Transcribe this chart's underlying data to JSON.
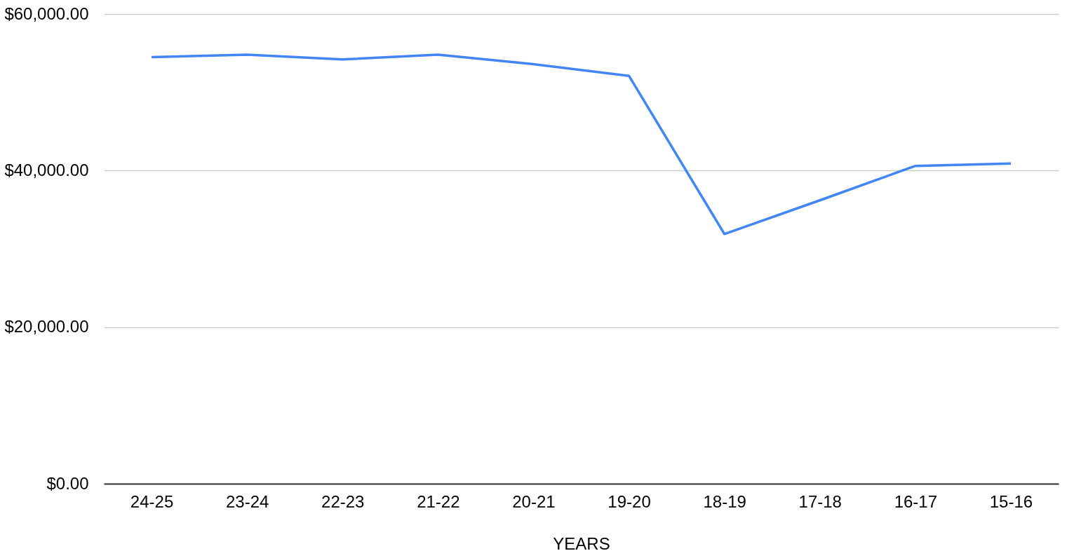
{
  "chart_data": {
    "type": "line",
    "xlabel": "YEARS",
    "categories": [
      "24-25",
      "23-24",
      "22-23",
      "21-22",
      "20-21",
      "19-20",
      "18-19",
      "17-18",
      "16-17",
      "15-16"
    ],
    "series": [
      {
        "color": "#4285f4",
        "values": [
          54500,
          54800,
          54200,
          54800,
          53600,
          52100,
          31900,
          36200,
          40600,
          40900
        ]
      }
    ],
    "ylim": [
      0,
      60000
    ],
    "yticks": [
      {
        "value": 0,
        "label": "$0.00"
      },
      {
        "value": 20000,
        "label": "$20,000.00"
      },
      {
        "value": 40000,
        "label": "$40,000.00"
      },
      {
        "value": 60000,
        "label": "$60,000.00"
      }
    ],
    "grid": "y",
    "marker": "none",
    "line_style": "solid"
  }
}
